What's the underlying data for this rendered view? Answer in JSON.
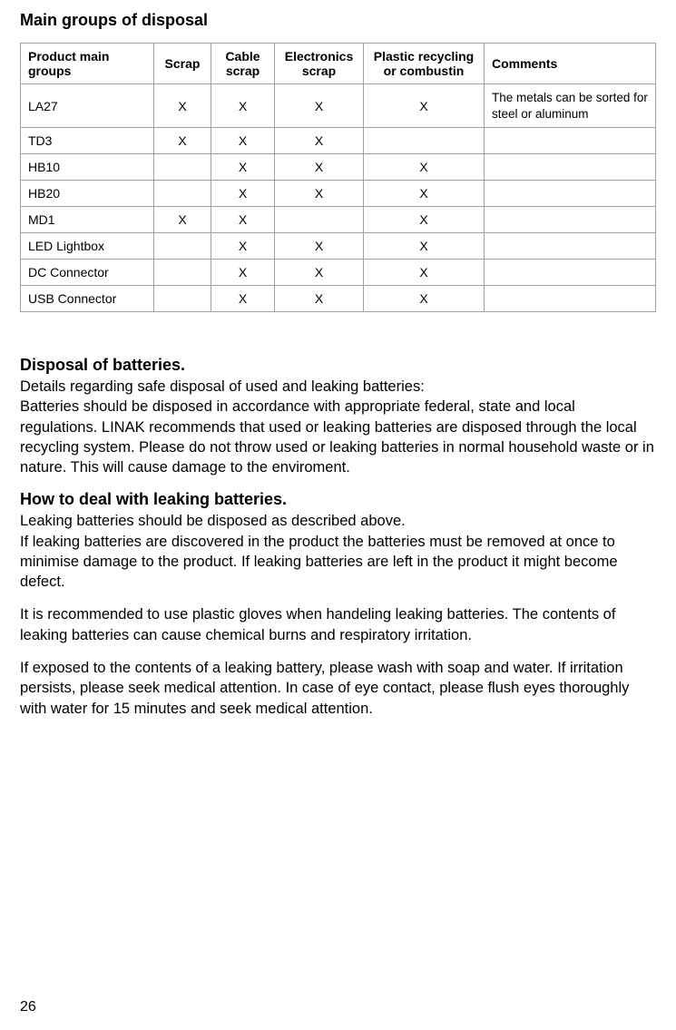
{
  "title": "Main groups of disposal",
  "table": {
    "headers": {
      "product": "Product main groups",
      "scrap": "Scrap",
      "cable": "Cable scrap",
      "electronics": "Electronics scrap",
      "plastic": "Plastic recycling or combustin",
      "comments": "Comments"
    },
    "rows": [
      {
        "product": "LA27",
        "scrap": "X",
        "cable": "X",
        "electronics": "X",
        "plastic": "X",
        "comments": "The metals can be sorted for steel or aluminum"
      },
      {
        "product": "TD3",
        "scrap": "X",
        "cable": "X",
        "electronics": "X",
        "plastic": "",
        "comments": ""
      },
      {
        "product": "HB10",
        "scrap": "",
        "cable": "X",
        "electronics": "X",
        "plastic": "X",
        "comments": ""
      },
      {
        "product": "HB20",
        "scrap": "",
        "cable": "X",
        "electronics": "X",
        "plastic": "X",
        "comments": ""
      },
      {
        "product": "MD1",
        "scrap": "X",
        "cable": "X",
        "electronics": "",
        "plastic": "X",
        "comments": ""
      },
      {
        "product": "LED Lightbox",
        "scrap": "",
        "cable": "X",
        "electronics": "X",
        "plastic": "X",
        "comments": ""
      },
      {
        "product": "DC Connector",
        "scrap": "",
        "cable": "X",
        "electronics": "X",
        "plastic": "X",
        "comments": ""
      },
      {
        "product": "USB Connector",
        "scrap": "",
        "cable": "X",
        "electronics": "X",
        "plastic": "X",
        "comments": ""
      }
    ],
    "colors": {
      "border": "#a0a0a0",
      "text": "#000000",
      "background": "#ffffff"
    },
    "font_sizes": {
      "header": 14,
      "cell": 14,
      "comments": 13.5
    }
  },
  "sections": {
    "disposal_title": "Disposal of batteries.",
    "disposal_p1": "Details regarding safe disposal of used and leaking batteries:",
    "disposal_p2": "Batteries should be disposed in accordance with appropriate federal, state and local regulations. LINAK recommends that used or leaking batteries are disposed through the local recycling system. Please do not throw used or leaking batteries in normal household waste or in nature. This will cause damage to the enviroment.",
    "leaking_title": "How to deal with leaking batteries.",
    "leaking_p1": "Leaking batteries should be disposed as described above.",
    "leaking_p2": "If leaking batteries are discovered in the product the batteries must be removed at once to minimise damage to the product. If leaking batteries are left in the product it might become defect.",
    "leaking_p3": "It is recommended to use plastic gloves when handeling leaking batteries. The contents of leaking batteries can cause chemical burns and respiratory irritation.",
    "leaking_p4": "If exposed to the contents of a leaking battery, please wash with soap and water. If irritation persists, please seek medical attention. In case of eye contact, please flush eyes thoroughly with water for 15 minutes and seek medical attention."
  },
  "page_number": "26"
}
